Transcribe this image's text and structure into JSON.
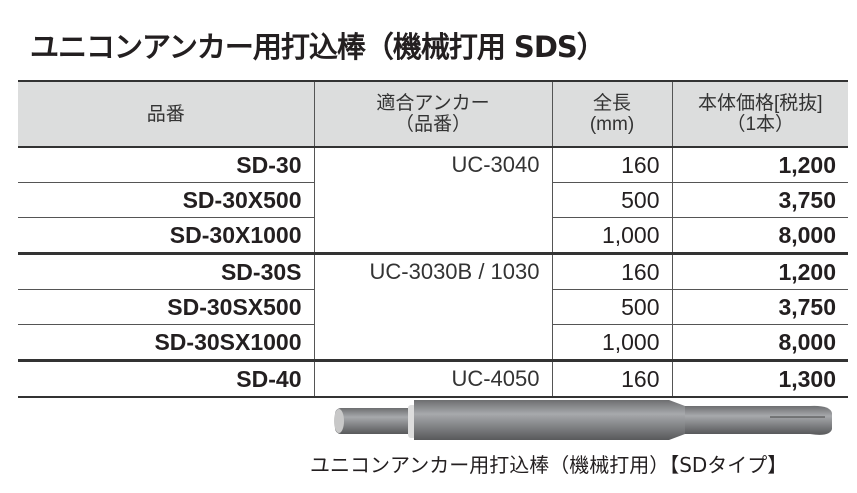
{
  "title": "ユニコンアンカー用打込棒（機械打用 SDS）",
  "table": {
    "headers": [
      {
        "l1": "品番",
        "l2": ""
      },
      {
        "l1": "適合アンカー",
        "l2": "（品番）"
      },
      {
        "l1": "全長",
        "l2": "(mm)"
      },
      {
        "l1": "本体価格[税抜]",
        "l2": "（1本）"
      }
    ],
    "rows": [
      {
        "code": "SD-30",
        "anchor": "UC-3040",
        "length": "160",
        "price": "1,200"
      },
      {
        "code": "SD-30X500",
        "length": "500",
        "price": "3,750"
      },
      {
        "code": "SD-30X1000",
        "length": "1,000",
        "price": "8,000"
      },
      {
        "code": "SD-30S",
        "anchor": "UC-3030B / 1030",
        "length": "160",
        "price": "1,200"
      },
      {
        "code": "SD-30SX500",
        "length": "500",
        "price": "3,750"
      },
      {
        "code": "SD-30SX1000",
        "length": "1,000",
        "price": "8,000"
      },
      {
        "code": "SD-40",
        "anchor": "UC-4050",
        "length": "160",
        "price": "1,300"
      }
    ]
  },
  "caption": "ユニコンアンカー用打込棒（機械打用）【SDタイプ】"
}
